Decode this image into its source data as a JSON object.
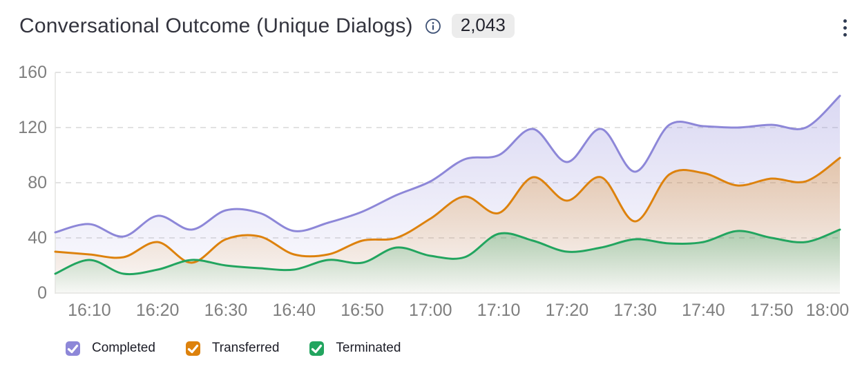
{
  "header": {
    "icons": {
      "info": "info-circle",
      "menu": "kebab-vertical-dots",
      "legend_mark": "checkmark"
    }
  },
  "colors": {
    "completed": "#8d87d8",
    "transferred": "#dd820d",
    "terminated": "#22a55f",
    "axis_text": "#7e7e7e",
    "grid_line": "#d8d8d8",
    "axis_line": "#e3e3e0",
    "title_text": "#33343e",
    "badge_bg": "#ececec",
    "icon_dark": "#3e5175",
    "legend_text": "#1c1d27"
  },
  "chart_data": {
    "type": "area",
    "title": "Conversational Outcome (Unique Dialogs)",
    "total_unique_dialogs": "2,043",
    "x": [
      "16:05",
      "16:10",
      "16:15",
      "16:20",
      "16:25",
      "16:30",
      "16:35",
      "16:40",
      "16:45",
      "16:50",
      "16:55",
      "17:00",
      "17:05",
      "17:10",
      "17:15",
      "17:20",
      "17:25",
      "17:30",
      "17:35",
      "17:40",
      "17:45",
      "17:50",
      "17:55",
      "18:00"
    ],
    "x_tick_labels": [
      "16:10",
      "16:20",
      "16:30",
      "16:40",
      "16:50",
      "17:00",
      "17:10",
      "17:20",
      "17:30",
      "17:40",
      "17:50",
      "18:00"
    ],
    "y_ticks": [
      0,
      40,
      80,
      120,
      160
    ],
    "ylim": [
      0,
      160
    ],
    "grid": "horizontal-dashed",
    "legend_position": "bottom",
    "smooth": true,
    "series": [
      {
        "name": "Completed",
        "color": "#8d87d8",
        "values": [
          44,
          50,
          41,
          56,
          46,
          60,
          58,
          45,
          51,
          59,
          71,
          81,
          97,
          100,
          119,
          95,
          119,
          88,
          122,
          121,
          120,
          122,
          120,
          143
        ]
      },
      {
        "name": "Transferred",
        "color": "#dd820d",
        "values": [
          30,
          28,
          26,
          37,
          22,
          39,
          41,
          28,
          28,
          38,
          40,
          54,
          70,
          58,
          84,
          67,
          84,
          52,
          86,
          87,
          78,
          83,
          81,
          98
        ]
      },
      {
        "name": "Terminated",
        "color": "#22a55f",
        "values": [
          14,
          24,
          14,
          17,
          24,
          20,
          18,
          17,
          24,
          22,
          33,
          27,
          26,
          43,
          38,
          30,
          33,
          39,
          36,
          37,
          45,
          40,
          37,
          46
        ]
      }
    ]
  }
}
